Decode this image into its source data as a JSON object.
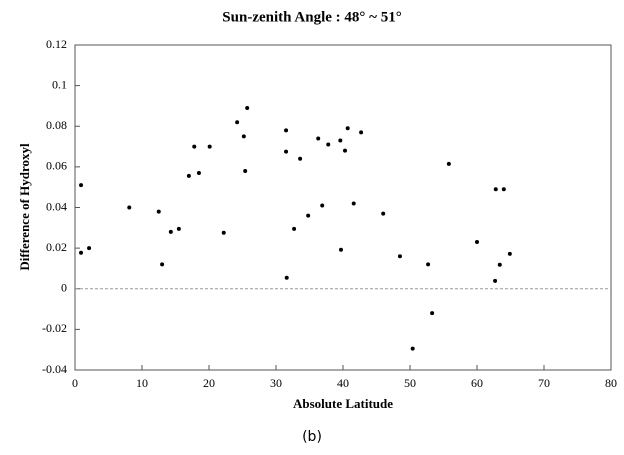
{
  "chart_data": {
    "type": "scatter",
    "title": "Sun-zenith Angle : 48° ~ 51°",
    "x_label": "Absolute Latitude",
    "y_label": "Difference of Hydroxyl",
    "caption": "(b)",
    "x": [
      0.9,
      0.9,
      2.1,
      8.1,
      12.5,
      13.0,
      14.3,
      15.5,
      17.0,
      17.8,
      18.5,
      20.1,
      22.2,
      24.2,
      25.2,
      25.4,
      25.7,
      31.5,
      31.5,
      31.6,
      32.7,
      33.6,
      34.8,
      36.3,
      36.9,
      37.8,
      39.6,
      39.7,
      40.3,
      40.7,
      41.6,
      42.7,
      46.0,
      48.5,
      50.4,
      52.7,
      53.3,
      55.8,
      60.0,
      62.8,
      62.7,
      63.4,
      64.0,
      64.9
    ],
    "values": [
      0.051,
      0.0177,
      0.02,
      0.04,
      0.038,
      0.012,
      0.028,
      0.0295,
      0.0556,
      0.07,
      0.057,
      0.07,
      0.0276,
      0.082,
      0.075,
      0.058,
      0.089,
      0.078,
      0.0675,
      0.0054,
      0.0295,
      0.064,
      0.036,
      0.074,
      0.041,
      0.071,
      0.073,
      0.0192,
      0.068,
      0.079,
      0.042,
      0.077,
      0.037,
      0.016,
      -0.0295,
      0.012,
      -0.012,
      0.0615,
      0.023,
      0.049,
      0.0039,
      0.0118,
      0.049,
      0.0172
    ],
    "color": "#000000",
    "xlim": [
      0,
      80
    ],
    "xticks": [
      0,
      10,
      20,
      30,
      40,
      50,
      60,
      70,
      80
    ],
    "ylim": [
      -0.04,
      0.12
    ],
    "yticks": [
      -0.04,
      -0.02,
      0,
      0.02,
      0.04,
      0.06,
      0.08,
      0.1,
      0.12
    ],
    "zero_line": true
  }
}
